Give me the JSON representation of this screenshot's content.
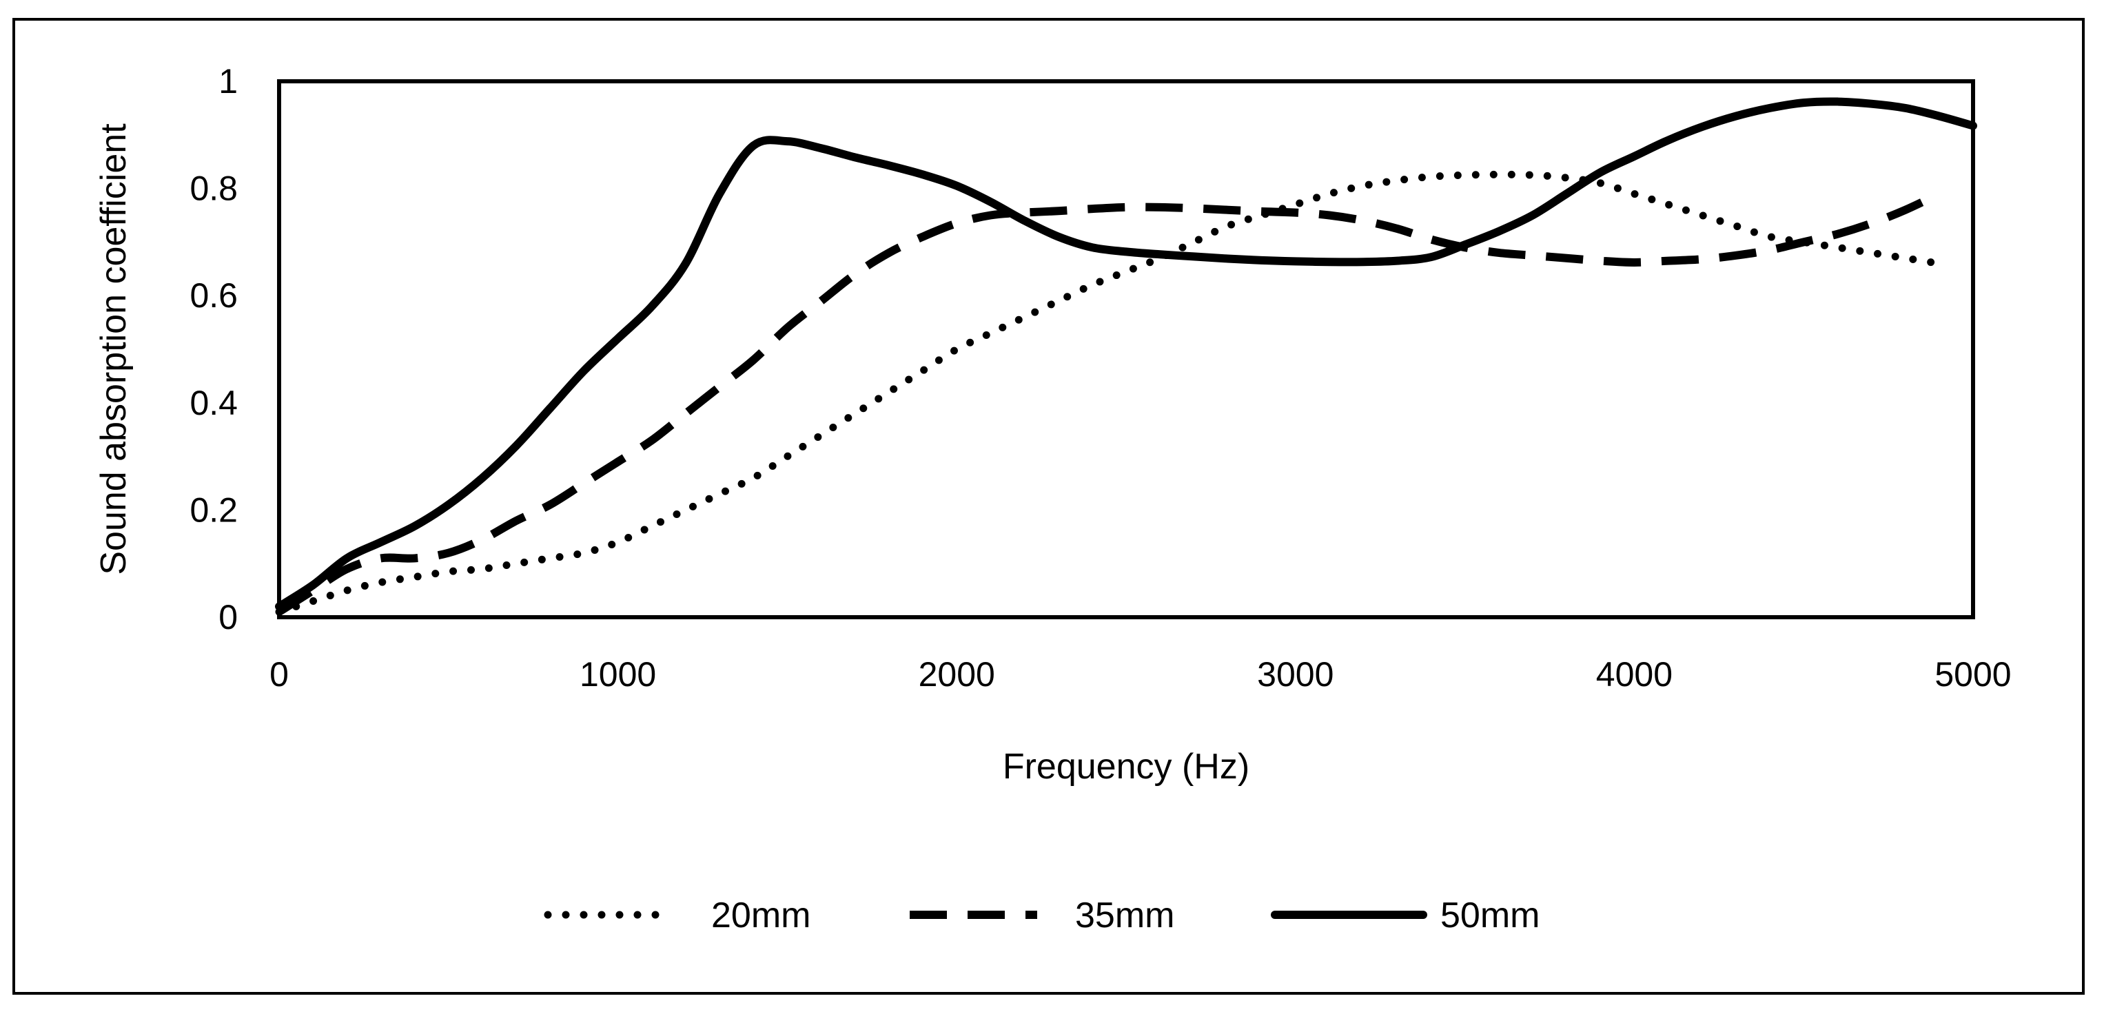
{
  "chart_data": {
    "type": "line",
    "title": "",
    "xlabel": "Frequency (Hz)",
    "ylabel": "Sound absorption coefficient",
    "xlim": [
      0,
      5000
    ],
    "ylim": [
      0,
      1
    ],
    "x_ticks": [
      0,
      1000,
      2000,
      3000,
      4000,
      5000
    ],
    "y_ticks": [
      0,
      0.2,
      0.4,
      0.6,
      0.8,
      1
    ],
    "x_tick_labels": [
      "0",
      "1000",
      "2000",
      "3000",
      "4000",
      "5000"
    ],
    "y_tick_labels": [
      "0",
      "0.2",
      "0.4",
      "0.6",
      "0.8",
      "1"
    ],
    "grid": false,
    "legend_position": "bottom",
    "series": [
      {
        "name": "20mm",
        "style": "dotted",
        "x": [
          0,
          100,
          200,
          300,
          400,
          500,
          600,
          700,
          800,
          900,
          1000,
          1100,
          1200,
          1300,
          1400,
          1500,
          1600,
          1700,
          1800,
          1900,
          2000,
          2100,
          2200,
          2300,
          2400,
          2500,
          2600,
          2700,
          2800,
          2900,
          3000,
          3100,
          3200,
          3300,
          3400,
          3500,
          3600,
          3700,
          3800,
          3900,
          4000,
          4100,
          4200,
          4300,
          4400,
          4500,
          4600,
          4700,
          4800,
          4900
        ],
        "y": [
          0.01,
          0.03,
          0.05,
          0.065,
          0.075,
          0.085,
          0.09,
          0.1,
          0.11,
          0.12,
          0.14,
          0.17,
          0.2,
          0.23,
          0.26,
          0.3,
          0.34,
          0.38,
          0.42,
          0.46,
          0.5,
          0.53,
          0.56,
          0.59,
          0.62,
          0.645,
          0.67,
          0.7,
          0.73,
          0.75,
          0.77,
          0.79,
          0.805,
          0.815,
          0.822,
          0.825,
          0.826,
          0.825,
          0.82,
          0.81,
          0.79,
          0.77,
          0.75,
          0.73,
          0.71,
          0.7,
          0.69,
          0.68,
          0.67,
          0.66
        ]
      },
      {
        "name": "35mm",
        "style": "dashed",
        "x": [
          0,
          100,
          200,
          300,
          400,
          500,
          600,
          700,
          800,
          900,
          1000,
          1100,
          1200,
          1300,
          1400,
          1500,
          1600,
          1700,
          1800,
          1900,
          2000,
          2100,
          2200,
          2300,
          2400,
          2500,
          2600,
          2700,
          2800,
          2900,
          3000,
          3100,
          3200,
          3300,
          3400,
          3500,
          3600,
          3700,
          3800,
          3900,
          4000,
          4100,
          4200,
          4300,
          4400,
          4500,
          4600,
          4700,
          4800,
          4900
        ],
        "y": [
          0.01,
          0.05,
          0.09,
          0.11,
          0.11,
          0.12,
          0.145,
          0.18,
          0.21,
          0.25,
          0.29,
          0.33,
          0.38,
          0.43,
          0.48,
          0.54,
          0.59,
          0.64,
          0.68,
          0.71,
          0.735,
          0.75,
          0.755,
          0.758,
          0.762,
          0.765,
          0.765,
          0.763,
          0.76,
          0.757,
          0.755,
          0.75,
          0.74,
          0.725,
          0.705,
          0.69,
          0.68,
          0.675,
          0.67,
          0.665,
          0.662,
          0.665,
          0.668,
          0.675,
          0.685,
          0.7,
          0.715,
          0.735,
          0.76,
          0.79
        ]
      },
      {
        "name": "50mm",
        "style": "solid",
        "x": [
          0,
          100,
          200,
          300,
          400,
          500,
          600,
          700,
          800,
          900,
          1000,
          1100,
          1200,
          1300,
          1400,
          1500,
          1600,
          1700,
          1800,
          1900,
          2000,
          2100,
          2200,
          2300,
          2400,
          2500,
          2600,
          2700,
          2800,
          2900,
          3000,
          3100,
          3200,
          3300,
          3400,
          3500,
          3600,
          3700,
          3800,
          3900,
          4000,
          4100,
          4200,
          4300,
          4400,
          4500,
          4600,
          4700,
          4800,
          4900,
          5000
        ],
        "y": [
          0.02,
          0.06,
          0.11,
          0.14,
          0.17,
          0.21,
          0.26,
          0.32,
          0.39,
          0.46,
          0.52,
          0.58,
          0.66,
          0.79,
          0.88,
          0.888,
          0.875,
          0.858,
          0.843,
          0.826,
          0.805,
          0.775,
          0.74,
          0.71,
          0.69,
          0.682,
          0.677,
          0.673,
          0.669,
          0.666,
          0.664,
          0.663,
          0.663,
          0.665,
          0.672,
          0.695,
          0.72,
          0.75,
          0.79,
          0.83,
          0.86,
          0.89,
          0.915,
          0.935,
          0.95,
          0.96,
          0.962,
          0.958,
          0.95,
          0.935,
          0.917
        ]
      }
    ]
  }
}
